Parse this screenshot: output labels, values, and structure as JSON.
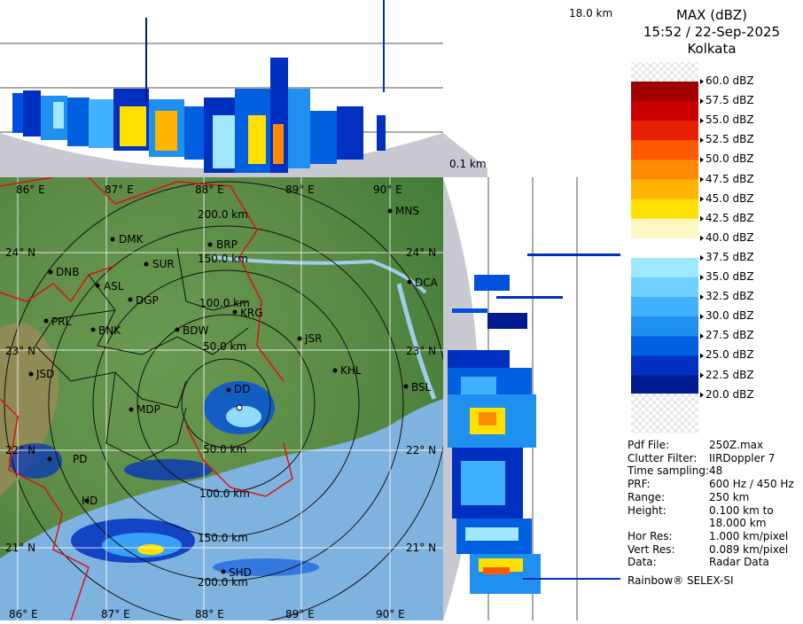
{
  "header": {
    "product": "MAX (dBZ)",
    "datetime": "15:52 / 22-Sep-2025",
    "station": "Kolkata"
  },
  "height_labels": {
    "top": "18.0 km",
    "bottom": "0.1 km"
  },
  "legend": {
    "levels": [
      {
        "label": "60.0 dBZ",
        "color": "checker"
      },
      {
        "label": "57.5 dBZ",
        "color": "#a00000"
      },
      {
        "label": "55.0 dBZ",
        "color": "#c80000"
      },
      {
        "label": "52.5 dBZ",
        "color": "#e62000"
      },
      {
        "label": "50.0 dBZ",
        "color": "#ff5a00"
      },
      {
        "label": "47.5 dBZ",
        "color": "#ff8c00"
      },
      {
        "label": "45.0 dBZ",
        "color": "#ffb400"
      },
      {
        "label": "42.5 dBZ",
        "color": "#ffe000"
      },
      {
        "label": "40.0 dBZ",
        "color": "#fff5c0"
      },
      {
        "label": "37.5 dBZ",
        "color": "#ffffff"
      },
      {
        "label": "35.0 dBZ",
        "color": "#a0e8ff"
      },
      {
        "label": "32.5 dBZ",
        "color": "#70d0ff"
      },
      {
        "label": "30.0 dBZ",
        "color": "#40b0ff"
      },
      {
        "label": "27.5 dBZ",
        "color": "#2090f0"
      },
      {
        "label": "25.0 dBZ",
        "color": "#0060e0"
      },
      {
        "label": "22.5 dBZ",
        "color": "#0030c0"
      },
      {
        "label": "20.0 dBZ",
        "color": "#001a90"
      }
    ]
  },
  "info": [
    {
      "key": "Pdf File:",
      "value": "250Z.max"
    },
    {
      "key": "Clutter Filter:",
      "value": "IIRDoppler 7"
    },
    {
      "key": "Time sampling:",
      "value": "48"
    },
    {
      "key": "PRF:",
      "value": "600 Hz / 450 Hz"
    },
    {
      "key": "Range:",
      "value": "250 km"
    },
    {
      "key": "Height:",
      "value": "0.100 km to"
    },
    {
      "key": "",
      "value": "18.000 km"
    },
    {
      "key": "Hor Res:",
      "value": "1.000 km/pixel"
    },
    {
      "key": "Vert Res:",
      "value": "0.089 km/pixel"
    },
    {
      "key": "Data:",
      "value": "Radar Data"
    }
  ],
  "footer": "Rainbow® SELEX-SI",
  "map": {
    "lon_labels_top": [
      "86° E",
      "87° E",
      "88° E",
      "89° E",
      "90° E"
    ],
    "lon_labels_bottom": [
      "86° E",
      "87° E",
      "88° E",
      "89° E",
      "90° E"
    ],
    "lat_labels_left": [
      "24° N",
      "23° N",
      "22° N",
      "21° N"
    ],
    "lat_labels_right": [
      "24° N",
      "23° N",
      "22° N",
      "21° N"
    ],
    "range_labels": [
      "200.0 km",
      "150.0 km",
      "100.0 km",
      "50.0 km",
      "50.0 km",
      "100.0 km",
      "150.0 km",
      "200.0 km"
    ],
    "cities": [
      "MNS",
      "DMK",
      "BRP",
      "SUR",
      "DNB",
      "ASL",
      "DGP",
      "KRG",
      "DCA",
      "PRL",
      "BNK",
      "BDW",
      "JSR",
      "KHL",
      "JSD",
      "BSL",
      "MDP",
      "DD",
      "PD",
      "HD",
      "SHD"
    ]
  }
}
